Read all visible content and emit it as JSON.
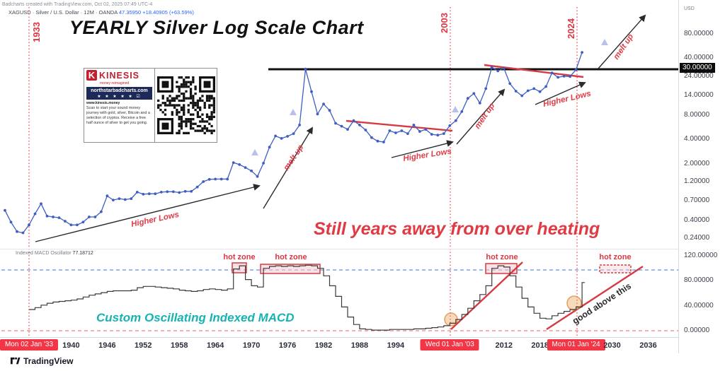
{
  "header": {
    "credit_line": "Badcharts created with TradingView.com, Oct 02, 2025 07:49 UTC-4",
    "symbol_line": "XAGUSD · Silver / U.S. Dollar · 12M · OANDA",
    "price": "47.35950",
    "change": "+18.40905 (+63.59%)"
  },
  "title": "YEARLY Silver Log Scale Chart",
  "promo": {
    "brand": "KINESIS",
    "tagline": "money reimagined",
    "site": "northstarbadcharts.com",
    "rating": "★ ★ ★ ★ ★",
    "verified": "☑",
    "url_line": "www.kinesis.money",
    "blurb": "Scan to start your sound money journey with gold, silver, Bitcoin and a selection of cryptos. Receive a free half ounce of silver to get you going."
  },
  "events": {
    "e1933": "1933",
    "e2003": "2003",
    "e2024": "2024"
  },
  "annotations": {
    "higher_lows": "Higher Lows",
    "melt_up": "melt up",
    "still_years": "Still years away from over heating",
    "good_above": "good above this",
    "custom_macd": "Custom Oscillating Indexed MACD",
    "hot_zone": "hot zone",
    "indicator_label": "Indexed MACD Oscillator",
    "indicator_value": "77.18712"
  },
  "price_axis": {
    "currency": "USD",
    "ticks": [
      {
        "label": "80.00000",
        "value": 80
      },
      {
        "label": "40.00000",
        "value": 40
      },
      {
        "label": "30.00000",
        "value": 30,
        "badge": true
      },
      {
        "label": "24.00000",
        "value": 24
      },
      {
        "label": "14.00000",
        "value": 14
      },
      {
        "label": "8.00000",
        "value": 8
      },
      {
        "label": "4.00000",
        "value": 4
      },
      {
        "label": "2.00000",
        "value": 2
      },
      {
        "label": "1.20000",
        "value": 1.2
      },
      {
        "label": "0.70000",
        "value": 0.7
      },
      {
        "label": "0.40000",
        "value": 0.4
      },
      {
        "label": "0.24000",
        "value": 0.24
      }
    ]
  },
  "macd_axis": {
    "ticks": [
      {
        "label": "120.00000",
        "value": 120
      },
      {
        "label": "80.00000",
        "value": 80
      },
      {
        "label": "40.00000",
        "value": 40
      },
      {
        "label": "0.00000",
        "value": 0
      }
    ]
  },
  "x_axis": {
    "ticks": [
      {
        "label": "Mon 02 Jan '33",
        "year": 1933,
        "badge": true
      },
      {
        "label": "1940",
        "year": 1940
      },
      {
        "label": "1946",
        "year": 1946
      },
      {
        "label": "1952",
        "year": 1952
      },
      {
        "label": "1958",
        "year": 1958
      },
      {
        "label": "1964",
        "year": 1964
      },
      {
        "label": "1970",
        "year": 1970
      },
      {
        "label": "1976",
        "year": 1976
      },
      {
        "label": "1982",
        "year": 1982
      },
      {
        "label": "1988",
        "year": 1988
      },
      {
        "label": "1994",
        "year": 1994
      },
      {
        "label": "Wed 01 Jan '03",
        "year": 2003,
        "badge": true
      },
      {
        "label": "2012",
        "year": 2012
      },
      {
        "label": "2018",
        "year": 2018
      },
      {
        "label": "Mon 01 Jan '24",
        "year": 2024,
        "badge": true
      },
      {
        "label": "2030",
        "year": 2030
      },
      {
        "label": "2036",
        "year": 2036
      }
    ]
  },
  "footer": {
    "brand": "TradingView"
  },
  "colors": {
    "accent_red": "#f23645",
    "annotation_red": "#e03d47",
    "line_blue": "#3f5ec2",
    "teal": "#17b3b3",
    "navy": "#1d2a58",
    "resistance_black": "#111111",
    "step_line": "#3a3a3a",
    "lavender_marker": "#b9c0ea",
    "hot_zone_fill": "#f6c9cf"
  },
  "chart_data": [
    {
      "type": "line",
      "name": "XAGUSD yearly close (log scale)",
      "title": "YEARLY Silver Log Scale Chart",
      "ylabel": "USD",
      "y_scale": "log",
      "ylim": [
        0.22,
        100
      ],
      "xlim": [
        1928,
        2040
      ],
      "key_levels": {
        "resistance": 30
      },
      "years": [
        1929,
        1930,
        1931,
        1932,
        1933,
        1934,
        1935,
        1936,
        1937,
        1938,
        1939,
        1940,
        1941,
        1942,
        1943,
        1944,
        1945,
        1946,
        1947,
        1948,
        1949,
        1950,
        1951,
        1952,
        1953,
        1954,
        1955,
        1956,
        1957,
        1958,
        1959,
        1960,
        1961,
        1962,
        1963,
        1964,
        1965,
        1966,
        1967,
        1968,
        1969,
        1970,
        1971,
        1972,
        1973,
        1974,
        1975,
        1976,
        1977,
        1978,
        1979,
        1980,
        1981,
        1982,
        1983,
        1984,
        1985,
        1986,
        1987,
        1988,
        1989,
        1990,
        1991,
        1992,
        1993,
        1994,
        1995,
        1996,
        1997,
        1998,
        1999,
        2000,
        2001,
        2002,
        2003,
        2004,
        2005,
        2006,
        2007,
        2008,
        2009,
        2010,
        2011,
        2012,
        2013,
        2014,
        2015,
        2016,
        2017,
        2018,
        2019,
        2020,
        2021,
        2022,
        2023,
        2024,
        2025
      ],
      "values": [
        0.53,
        0.38,
        0.29,
        0.28,
        0.35,
        0.48,
        0.64,
        0.45,
        0.44,
        0.43,
        0.39,
        0.35,
        0.35,
        0.38,
        0.44,
        0.44,
        0.51,
        0.8,
        0.71,
        0.74,
        0.72,
        0.74,
        0.89,
        0.84,
        0.85,
        0.85,
        0.89,
        0.9,
        0.9,
        0.88,
        0.91,
        0.91,
        1.03,
        1.2,
        1.28,
        1.29,
        1.29,
        1.29,
        2.06,
        1.95,
        1.79,
        1.63,
        1.39,
        2.03,
        3.2,
        4.4,
        4.1,
        4.35,
        4.7,
        6.0,
        29.5,
        15.5,
        8.2,
        10.9,
        9.1,
        6.3,
        5.8,
        5.3,
        6.8,
        6.0,
        5.2,
        4.2,
        3.8,
        3.7,
        5.1,
        4.8,
        5.1,
        4.7,
        6.0,
        5.0,
        5.3,
        4.6,
        4.5,
        4.7,
        5.9,
        6.8,
        8.8,
        12.8,
        14.7,
        11.2,
        16.9,
        30.9,
        27.9,
        30.2,
        19.5,
        15.7,
        13.8,
        15.9,
        16.9,
        15.5,
        17.9,
        26.4,
        23.3,
        24.0,
        23.8,
        28.9,
        47.36
      ]
    },
    {
      "type": "step",
      "name": "Indexed MACD Oscillator",
      "current_value": 77.18712,
      "hot_zone_threshold": 97,
      "ylim": [
        0,
        130
      ],
      "hot_zones_years": [
        [
          1967,
          1969
        ],
        [
          1972,
          1981
        ],
        [
          2009,
          2014
        ],
        [
          2028,
          2033
        ]
      ],
      "years": [
        1933,
        1934,
        1935,
        1936,
        1937,
        1938,
        1939,
        1940,
        1941,
        1942,
        1943,
        1944,
        1945,
        1946,
        1947,
        1948,
        1949,
        1950,
        1951,
        1952,
        1953,
        1954,
        1955,
        1956,
        1957,
        1958,
        1959,
        1960,
        1961,
        1962,
        1963,
        1964,
        1965,
        1966,
        1967,
        1968,
        1969,
        1970,
        1971,
        1972,
        1973,
        1974,
        1975,
        1976,
        1977,
        1978,
        1979,
        1980,
        1981,
        1982,
        1983,
        1984,
        1985,
        1986,
        1987,
        1988,
        1989,
        1990,
        1991,
        1992,
        1993,
        1994,
        1995,
        1996,
        1997,
        1998,
        1999,
        2000,
        2001,
        2002,
        2003,
        2004,
        2005,
        2006,
        2007,
        2008,
        2009,
        2010,
        2011,
        2012,
        2013,
        2014,
        2015,
        2016,
        2017,
        2018,
        2019,
        2020,
        2021,
        2022,
        2023,
        2024,
        2025
      ],
      "values": [
        34,
        37,
        41,
        44,
        46,
        47,
        48,
        49,
        51,
        54,
        57,
        59,
        61,
        63,
        64,
        64,
        64,
        65,
        69,
        71,
        71,
        70,
        69,
        68,
        67,
        65,
        64,
        63,
        64,
        66,
        67,
        66,
        65,
        67,
        99,
        104,
        82,
        72,
        70,
        100,
        103,
        104,
        103,
        104,
        103,
        104,
        105,
        104,
        100,
        88,
        72,
        55,
        38,
        22,
        10,
        3,
        2,
        1,
        1,
        1,
        2,
        2,
        2,
        2,
        3,
        3,
        4,
        5,
        6,
        8,
        12,
        18,
        26,
        36,
        48,
        58,
        72,
        100,
        104,
        102,
        88,
        70,
        52,
        38,
        28,
        20,
        19,
        24,
        28,
        31,
        34,
        38,
        77.2
      ]
    }
  ]
}
